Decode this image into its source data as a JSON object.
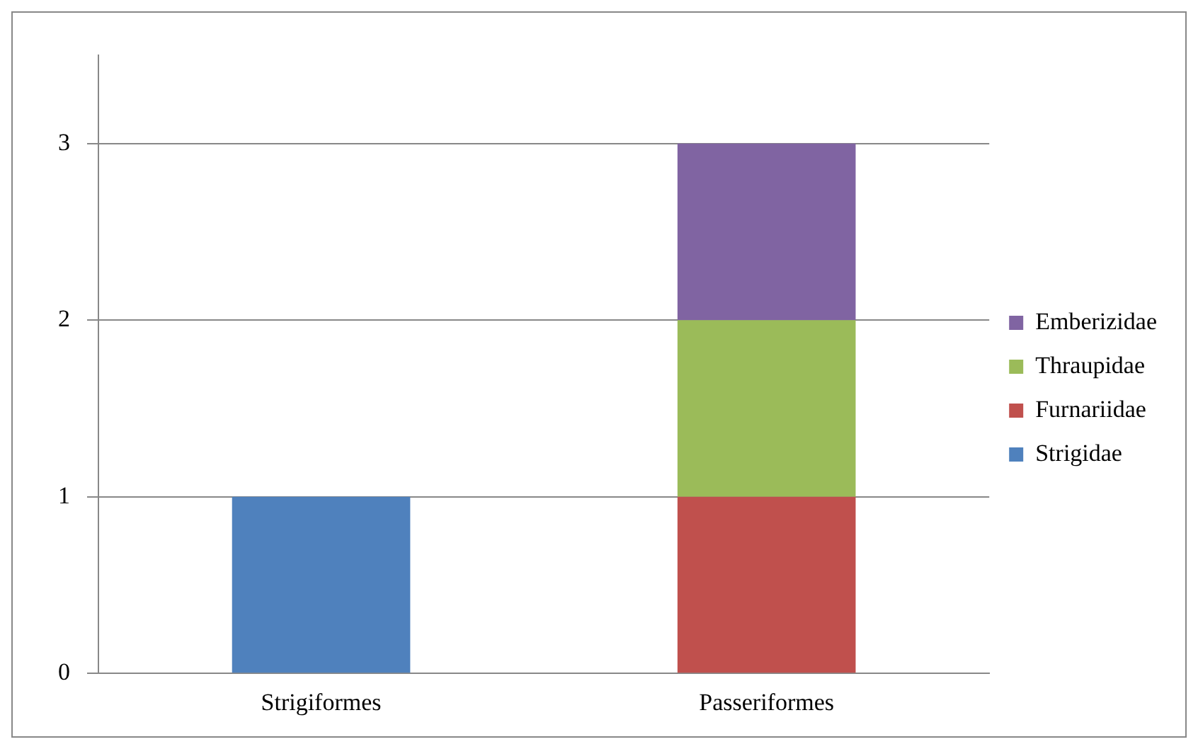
{
  "chart_data": {
    "type": "bar",
    "stacked": true,
    "categories": [
      "Strigiformes",
      "Passeriformes"
    ],
    "series": [
      {
        "name": "Strigidae",
        "color": "#4f81bd",
        "values": [
          1,
          null
        ]
      },
      {
        "name": "Furnariidae",
        "color": "#c0504d",
        "values": [
          null,
          1
        ]
      },
      {
        "name": "Thraupidae",
        "color": "#9bbb59",
        "values": [
          null,
          1
        ]
      },
      {
        "name": "Emberizidae",
        "color": "#8064a2",
        "values": [
          null,
          1
        ]
      }
    ],
    "ylim": [
      0,
      3.5
    ],
    "yticks": [
      0,
      1,
      2,
      3
    ],
    "grid": "y",
    "legend": "right"
  }
}
